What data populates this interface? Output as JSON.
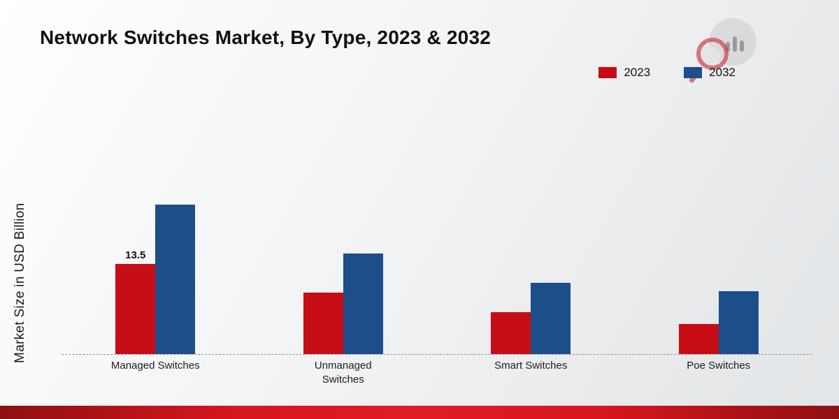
{
  "title": "Network Switches Market, By Type, 2023 & 2032",
  "ylabel": "Market Size in USD Billion",
  "legend": {
    "items": [
      {
        "label": "2023",
        "color": "#c60d16"
      },
      {
        "label": "2032",
        "color": "#1c4e89"
      }
    ],
    "position": "top-right"
  },
  "chart_data": {
    "type": "bar",
    "title": "Network Switches Market, By Type, 2023 & 2032",
    "xlabel": "",
    "ylabel": "Market Size in USD Billion",
    "categories": [
      "Managed Switches",
      "Unmanaged Switches",
      "Smart Switches",
      "Poe Switches"
    ],
    "series": [
      {
        "name": "2023",
        "color": "#c60d16",
        "values": [
          13.5,
          9.2,
          6.3,
          4.5
        ],
        "data_labels": [
          "13.5",
          "",
          "",
          ""
        ]
      },
      {
        "name": "2032",
        "color": "#1c4e89",
        "values": [
          22.3,
          15.0,
          10.6,
          9.4
        ],
        "data_labels": [
          "",
          "",
          "",
          ""
        ]
      }
    ],
    "ylim": [
      0,
      24
    ],
    "grid": false,
    "baseline_style": "dashed",
    "legend_position": "top-right"
  },
  "branding": {
    "bottom_strip_color": "#d8161e",
    "logo": "market-research-logo"
  }
}
